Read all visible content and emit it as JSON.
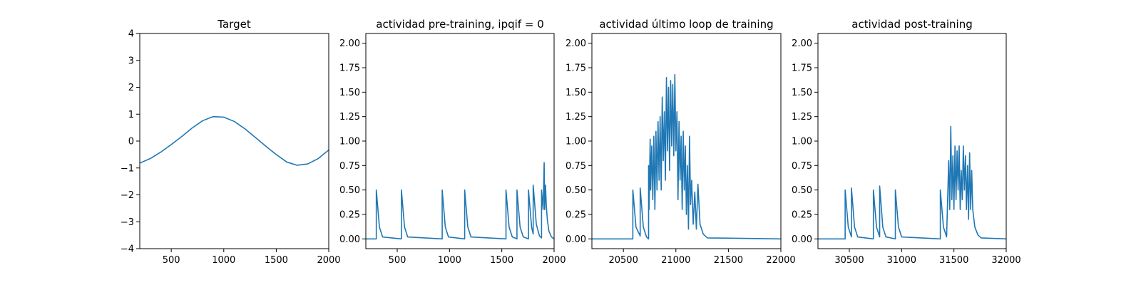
{
  "chart_data": [
    {
      "type": "line",
      "title": "Target",
      "xlim": [
        200,
        2000
      ],
      "ylim": [
        -4,
        4
      ],
      "xticks": [
        500,
        1000,
        1500,
        2000
      ],
      "xtick_labels": [
        "500",
        "1000",
        "1500",
        "2000"
      ],
      "yticks": [
        -4,
        -3,
        -2,
        -1,
        0,
        1,
        2,
        3,
        4
      ],
      "ytick_labels": [
        "−4",
        "−3",
        "−2",
        "−1",
        "0",
        "1",
        "2",
        "3",
        "4"
      ],
      "series": [
        {
          "x": [
            200,
            300,
            400,
            500,
            600,
            700,
            800,
            900,
            1000,
            1100,
            1200,
            1300,
            1400,
            1500,
            1600,
            1700,
            1800,
            1900,
            2000
          ],
          "values": [
            -0.82,
            -0.65,
            -0.41,
            -0.13,
            0.17,
            0.49,
            0.76,
            0.91,
            0.89,
            0.73,
            0.46,
            0.14,
            -0.19,
            -0.5,
            -0.78,
            -0.9,
            -0.85,
            -0.65,
            -0.33
          ]
        }
      ]
    },
    {
      "type": "line",
      "title": "actividad pre-training, ipqif = 0",
      "xlim": [
        200,
        2000
      ],
      "ylim": [
        -0.1,
        2.1
      ],
      "xticks": [
        500,
        1000,
        1500,
        2000
      ],
      "xtick_labels": [
        "500",
        "1000",
        "1500",
        "2000"
      ],
      "yticks": [
        0,
        0.25,
        0.5,
        0.75,
        1,
        1.25,
        1.5,
        1.75,
        2
      ],
      "ytick_labels": [
        "0.00",
        "0.25",
        "0.50",
        "0.75",
        "1.00",
        "1.25",
        "1.50",
        "1.75",
        "2.00"
      ],
      "series": [
        {
          "x": [
            200,
            300,
            300,
            330,
            360,
            540,
            540,
            570,
            600,
            930,
            930,
            960,
            990,
            1145,
            1145,
            1175,
            1205,
            1540,
            1540,
            1570,
            1600,
            1645,
            1645,
            1675,
            1705,
            1755,
            1755,
            1785,
            1800,
            1800,
            1830,
            1860,
            1880,
            1880,
            1895,
            1905,
            1910,
            1918,
            1925,
            1935,
            1950,
            1975,
            2000
          ],
          "values": [
            0,
            0,
            0.5,
            0.12,
            0.02,
            0,
            0.5,
            0.12,
            0.02,
            0,
            0.5,
            0.12,
            0.02,
            0,
            0.5,
            0.12,
            0.02,
            0,
            0.5,
            0.12,
            0.02,
            0,
            0.5,
            0.12,
            0.02,
            0,
            0.5,
            0.12,
            0.05,
            0.55,
            0.15,
            0.03,
            0.01,
            0.5,
            0.3,
            0.78,
            0.3,
            0.55,
            0.35,
            0.2,
            0.08,
            0.02,
            0
          ]
        }
      ]
    },
    {
      "type": "line",
      "title": "actividad último loop de training",
      "xlim": [
        20200,
        22000
      ],
      "ylim": [
        -0.1,
        2.1
      ],
      "xticks": [
        20500,
        21000,
        21500,
        22000
      ],
      "xtick_labels": [
        "20500",
        "21000",
        "21500",
        "22000"
      ],
      "yticks": [
        0,
        0.25,
        0.5,
        0.75,
        1,
        1.25,
        1.5,
        1.75,
        2
      ],
      "ytick_labels": [
        "0.00",
        "0.25",
        "0.50",
        "0.75",
        "1.00",
        "1.25",
        "1.50",
        "1.75",
        "2.00"
      ],
      "series": [
        {
          "x": [
            20200,
            20590,
            20590,
            20620,
            20660,
            20660,
            20690,
            20720,
            20740,
            20740,
            20745,
            20755,
            20760,
            20770,
            20780,
            20790,
            20800,
            20810,
            20820,
            20830,
            20840,
            20850,
            20860,
            20870,
            20880,
            20890,
            20900,
            20910,
            20920,
            20930,
            20940,
            20950,
            20960,
            20970,
            20980,
            20990,
            21000,
            21010,
            21020,
            21030,
            21040,
            21050,
            21060,
            21070,
            21080,
            21090,
            21100,
            21110,
            21120,
            21130,
            21140,
            21150,
            21165,
            21180,
            21195,
            21210,
            21230,
            21260,
            21300,
            22000
          ],
          "values": [
            0,
            0,
            0.5,
            0.12,
            0.03,
            0.52,
            0.12,
            0.02,
            0,
            0.75,
            0.3,
            1.02,
            0.5,
            0.95,
            0.4,
            1.05,
            0.3,
            1.1,
            0.5,
            1.2,
            0.6,
            1.25,
            0.5,
            1.45,
            0.8,
            1.3,
            0.6,
            1.65,
            0.9,
            1.55,
            0.7,
            1.62,
            0.95,
            1.58,
            0.85,
            1.68,
            0.9,
            1.3,
            0.4,
            1.2,
            0.6,
            1.05,
            0.3,
            1.1,
            0.5,
            0.95,
            0.25,
            0.75,
            0.1,
            1.05,
            0.35,
            0.6,
            0.15,
            0.48,
            0.1,
            0.56,
            0.15,
            0.05,
            0.01,
            0
          ]
        }
      ]
    },
    {
      "type": "line",
      "title": "actividad post-training",
      "xlim": [
        30200,
        32000
      ],
      "ylim": [
        -0.1,
        2.1
      ],
      "xticks": [
        30500,
        31000,
        31500,
        32000
      ],
      "xtick_labels": [
        "30500",
        "31000",
        "31500",
        "32000"
      ],
      "yticks": [
        0,
        0.25,
        0.5,
        0.75,
        1,
        1.25,
        1.5,
        1.75,
        2
      ],
      "ytick_labels": [
        "0.00",
        "0.25",
        "0.50",
        "0.75",
        "1.00",
        "1.25",
        "1.50",
        "1.75",
        "2.00"
      ],
      "series": [
        {
          "x": [
            30200,
            30460,
            30460,
            30490,
            30520,
            30520,
            30550,
            30580,
            30730,
            30730,
            30760,
            30790,
            30790,
            30820,
            30850,
            30940,
            30940,
            30970,
            31000,
            31370,
            31370,
            31400,
            31430,
            31450,
            31460,
            31470,
            31480,
            31490,
            31500,
            31510,
            31520,
            31530,
            31540,
            31550,
            31560,
            31570,
            31580,
            31590,
            31600,
            31610,
            31620,
            31630,
            31640,
            31650,
            31660,
            31670,
            31680,
            31700,
            31730,
            31760,
            32000
          ],
          "values": [
            0,
            0,
            0.5,
            0.12,
            0.02,
            0.52,
            0.12,
            0.02,
            0,
            0.5,
            0.12,
            0.02,
            0.54,
            0.12,
            0.02,
            0,
            0.5,
            0.12,
            0.02,
            0,
            0.5,
            0.12,
            0.02,
            0.8,
            0.3,
            1.15,
            0.4,
            0.85,
            0.3,
            0.95,
            0.4,
            0.9,
            0.5,
            0.95,
            0.3,
            0.7,
            0.4,
            0.95,
            0.5,
            0.85,
            0.3,
            0.75,
            0.2,
            0.88,
            0.3,
            0.7,
            0.3,
            0.12,
            0.04,
            0.01,
            0
          ]
        }
      ]
    }
  ],
  "colors": {
    "line": "#1f77b4",
    "axis": "#000000",
    "background": "#ffffff"
  }
}
